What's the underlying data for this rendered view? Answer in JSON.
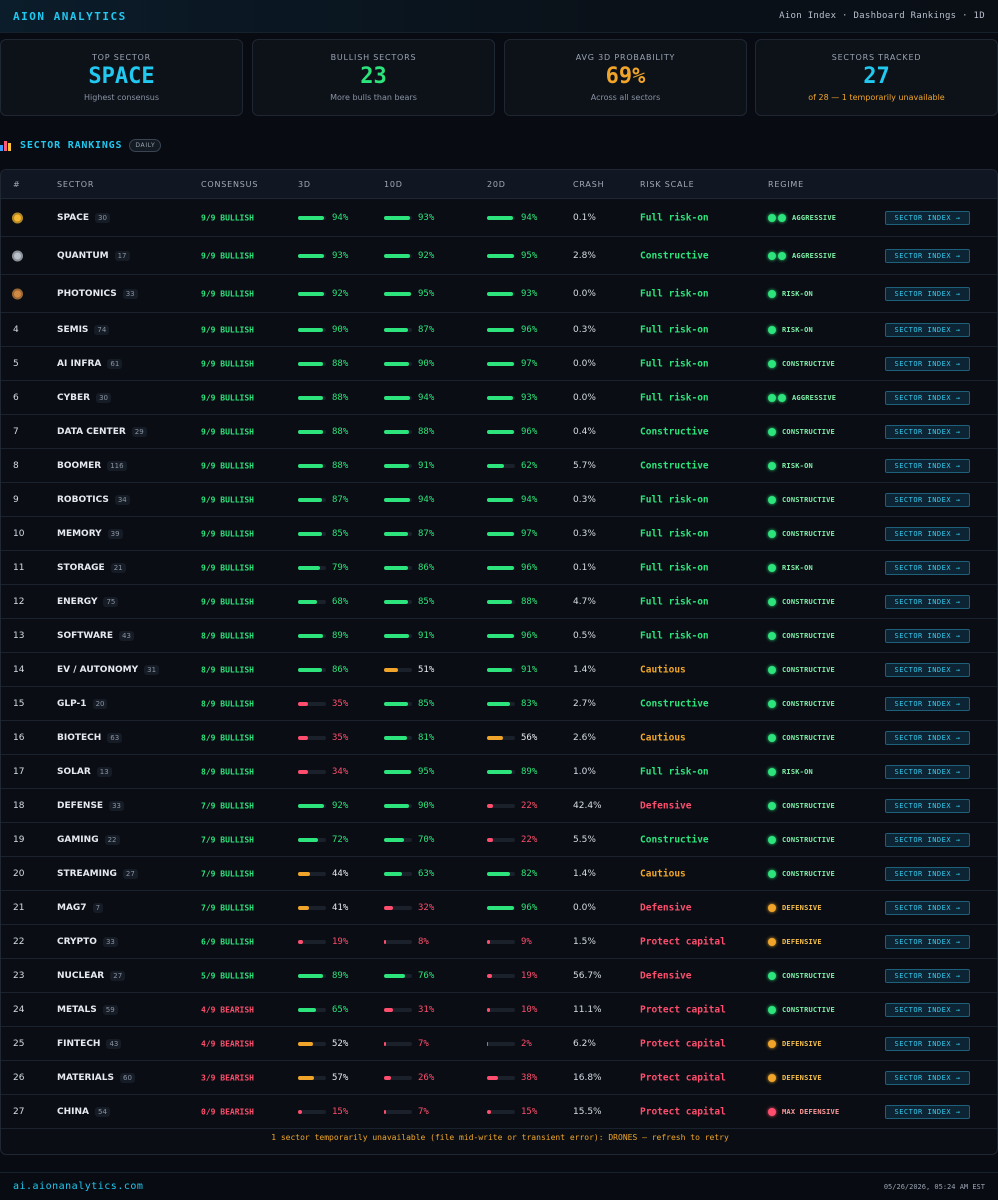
{
  "app": {
    "brand": "AION ANALYTICS",
    "breadcrumb": "Aion Index · Dashboard Rankings · 1D"
  },
  "colors": {
    "green": "#2de37b",
    "amber": "#f0a52a",
    "red": "#ff4d6d",
    "cyan": "#21c8f0"
  },
  "cards": [
    {
      "label": "TOP SECTOR",
      "value": "SPACE",
      "sub": "Highest consensus",
      "value_color": "cyan",
      "sub_color": "muted"
    },
    {
      "label": "BULLISH SECTORS",
      "value": "23",
      "sub": "More bulls than bears",
      "value_color": "green",
      "sub_color": "muted"
    },
    {
      "label": "AVG 3D PROBABILITY",
      "value": "69%",
      "sub": "Across all sectors",
      "value_color": "amber",
      "sub_color": "muted"
    },
    {
      "label": "SECTORS TRACKED",
      "value": "27",
      "sub": "of 28 — 1 temporarily unavailable",
      "value_color": "cyan",
      "sub_color": "amber"
    }
  ],
  "section": {
    "title": "SECTOR RANKINGS",
    "badge": "DAILY",
    "icon": "bar-chart-icon"
  },
  "columns": [
    "#",
    "SECTOR",
    "CONSENSUS",
    "3D",
    "10D",
    "20D",
    "CRASH",
    "RISK SCALE",
    "REGIME"
  ],
  "action_label": "SECTOR INDEX →",
  "rows": [
    {
      "rank": "1",
      "medal": "gold",
      "sector": "SPACE",
      "count": "30",
      "consensus": "9/9 BULLISH",
      "d3": 94,
      "d10": 93,
      "d20": 94,
      "crash": "0.1%",
      "risk": "Full risk-on",
      "regime": "AGGRESSIVE",
      "regime_dots": 2,
      "regime_color": "green"
    },
    {
      "rank": "2",
      "medal": "silver",
      "sector": "QUANTUM",
      "count": "17",
      "consensus": "9/9 BULLISH",
      "d3": 93,
      "d10": 92,
      "d20": 95,
      "crash": "2.8%",
      "risk": "Constructive",
      "regime": "AGGRESSIVE",
      "regime_dots": 2,
      "regime_color": "green"
    },
    {
      "rank": "3",
      "medal": "bronze",
      "sector": "PHOTONICS",
      "count": "33",
      "consensus": "9/9 BULLISH",
      "d3": 92,
      "d10": 95,
      "d20": 93,
      "crash": "0.0%",
      "risk": "Full risk-on",
      "regime": "RISK-ON",
      "regime_dots": 1,
      "regime_color": "green"
    },
    {
      "rank": "4",
      "sector": "SEMIS",
      "count": "74",
      "consensus": "9/9 BULLISH",
      "d3": 90,
      "d10": 87,
      "d20": 96,
      "crash": "0.3%",
      "risk": "Full risk-on",
      "regime": "RISK-ON",
      "regime_dots": 1,
      "regime_color": "green"
    },
    {
      "rank": "5",
      "sector": "AI INFRA",
      "count": "61",
      "consensus": "9/9 BULLISH",
      "d3": 88,
      "d10": 90,
      "d20": 97,
      "crash": "0.0%",
      "risk": "Full risk-on",
      "regime": "CONSTRUCTIVE",
      "regime_dots": 1,
      "regime_color": "green"
    },
    {
      "rank": "6",
      "sector": "CYBER",
      "count": "30",
      "consensus": "9/9 BULLISH",
      "d3": 88,
      "d10": 94,
      "d20": 93,
      "crash": "0.0%",
      "risk": "Full risk-on",
      "regime": "AGGRESSIVE",
      "regime_dots": 2,
      "regime_color": "green"
    },
    {
      "rank": "7",
      "sector": "DATA CENTER",
      "count": "29",
      "consensus": "9/9 BULLISH",
      "d3": 88,
      "d10": 88,
      "d20": 96,
      "crash": "0.4%",
      "risk": "Constructive",
      "regime": "CONSTRUCTIVE",
      "regime_dots": 1,
      "regime_color": "green"
    },
    {
      "rank": "8",
      "sector": "BOOMER",
      "count": "116",
      "consensus": "9/9 BULLISH",
      "d3": 88,
      "d10": 91,
      "d20": 62,
      "crash": "5.7%",
      "risk": "Constructive",
      "regime": "RISK-ON",
      "regime_dots": 1,
      "regime_color": "green"
    },
    {
      "rank": "9",
      "sector": "ROBOTICS",
      "count": "34",
      "consensus": "9/9 BULLISH",
      "d3": 87,
      "d10": 94,
      "d20": 94,
      "crash": "0.3%",
      "risk": "Full risk-on",
      "regime": "CONSTRUCTIVE",
      "regime_dots": 1,
      "regime_color": "green"
    },
    {
      "rank": "10",
      "sector": "MEMORY",
      "count": "39",
      "consensus": "9/9 BULLISH",
      "d3": 85,
      "d10": 87,
      "d20": 97,
      "crash": "0.3%",
      "risk": "Full risk-on",
      "regime": "CONSTRUCTIVE",
      "regime_dots": 1,
      "regime_color": "green"
    },
    {
      "rank": "11",
      "sector": "STORAGE",
      "count": "21",
      "consensus": "9/9 BULLISH",
      "d3": 79,
      "d10": 86,
      "d20": 96,
      "crash": "0.1%",
      "risk": "Full risk-on",
      "regime": "RISK-ON",
      "regime_dots": 1,
      "regime_color": "green"
    },
    {
      "rank": "12",
      "sector": "ENERGY",
      "count": "75",
      "consensus": "9/9 BULLISH",
      "d3": 68,
      "d10": 85,
      "d20": 88,
      "crash": "4.7%",
      "risk": "Full risk-on",
      "regime": "CONSTRUCTIVE",
      "regime_dots": 1,
      "regime_color": "green"
    },
    {
      "rank": "13",
      "sector": "SOFTWARE",
      "count": "43",
      "consensus": "8/9 BULLISH",
      "d3": 89,
      "d10": 91,
      "d20": 96,
      "crash": "0.5%",
      "risk": "Full risk-on",
      "regime": "CONSTRUCTIVE",
      "regime_dots": 1,
      "regime_color": "green"
    },
    {
      "rank": "14",
      "sector": "EV / AUTONOMY",
      "count": "31",
      "consensus": "8/9 BULLISH",
      "d3": 86,
      "d10": 51,
      "d20": 91,
      "crash": "1.4%",
      "risk": "Cautious",
      "regime": "CONSTRUCTIVE",
      "regime_dots": 1,
      "regime_color": "green"
    },
    {
      "rank": "15",
      "sector": "GLP-1",
      "count": "20",
      "consensus": "8/9 BULLISH",
      "d3": 35,
      "d10": 85,
      "d20": 83,
      "crash": "2.7%",
      "risk": "Constructive",
      "regime": "CONSTRUCTIVE",
      "regime_dots": 1,
      "regime_color": "green"
    },
    {
      "rank": "16",
      "sector": "BIOTECH",
      "count": "63",
      "consensus": "8/9 BULLISH",
      "d3": 35,
      "d10": 81,
      "d20": 56,
      "crash": "2.6%",
      "risk": "Cautious",
      "regime": "CONSTRUCTIVE",
      "regime_dots": 1,
      "regime_color": "green"
    },
    {
      "rank": "17",
      "sector": "SOLAR",
      "count": "13",
      "consensus": "8/9 BULLISH",
      "d3": 34,
      "d10": 95,
      "d20": 89,
      "crash": "1.0%",
      "risk": "Full risk-on",
      "regime": "RISK-ON",
      "regime_dots": 1,
      "regime_color": "green"
    },
    {
      "rank": "18",
      "sector": "DEFENSE",
      "count": "33",
      "consensus": "7/9 BULLISH",
      "d3": 92,
      "d10": 90,
      "d20": 22,
      "crash": "42.4%",
      "risk": "Defensive",
      "regime": "CONSTRUCTIVE",
      "regime_dots": 1,
      "regime_color": "green"
    },
    {
      "rank": "19",
      "sector": "GAMING",
      "count": "22",
      "consensus": "7/9 BULLISH",
      "d3": 72,
      "d10": 70,
      "d20": 22,
      "crash": "5.5%",
      "risk": "Constructive",
      "regime": "CONSTRUCTIVE",
      "regime_dots": 1,
      "regime_color": "green"
    },
    {
      "rank": "20",
      "sector": "STREAMING",
      "count": "27",
      "consensus": "7/9 BULLISH",
      "d3": 44,
      "d10": 63,
      "d20": 82,
      "crash": "1.4%",
      "risk": "Cautious",
      "regime": "CONSTRUCTIVE",
      "regime_dots": 1,
      "regime_color": "green"
    },
    {
      "rank": "21",
      "sector": "MAG7",
      "count": "7",
      "consensus": "7/9 BULLISH",
      "d3": 41,
      "d10": 32,
      "d20": 96,
      "crash": "0.0%",
      "risk": "Defensive",
      "regime": "DEFENSIVE",
      "regime_dots": 1,
      "regime_color": "amber"
    },
    {
      "rank": "22",
      "sector": "CRYPTO",
      "count": "33",
      "consensus": "6/9 BULLISH",
      "d3": 19,
      "d10": 8,
      "d20": 9,
      "crash": "1.5%",
      "risk": "Protect capital",
      "regime": "DEFENSIVE",
      "regime_dots": 1,
      "regime_color": "amber"
    },
    {
      "rank": "23",
      "sector": "NUCLEAR",
      "count": "27",
      "consensus": "5/9 BULLISH",
      "d3": 89,
      "d10": 76,
      "d20": 19,
      "crash": "56.7%",
      "risk": "Defensive",
      "regime": "CONSTRUCTIVE",
      "regime_dots": 1,
      "regime_color": "green"
    },
    {
      "rank": "24",
      "sector": "METALS",
      "count": "59",
      "consensus": "4/9 BEARISH",
      "d3": 65,
      "d10": 31,
      "d20": 10,
      "crash": "11.1%",
      "risk": "Protect capital",
      "regime": "CONSTRUCTIVE",
      "regime_dots": 1,
      "regime_color": "green"
    },
    {
      "rank": "25",
      "sector": "FINTECH",
      "count": "43",
      "consensus": "4/9 BEARISH",
      "d3": 52,
      "d10": 7,
      "d20": 2,
      "crash": "6.2%",
      "risk": "Protect capital",
      "regime": "DEFENSIVE",
      "regime_dots": 1,
      "regime_color": "amber"
    },
    {
      "rank": "26",
      "sector": "MATERIALS",
      "count": "60",
      "consensus": "3/9 BEARISH",
      "d3": 57,
      "d10": 26,
      "d20": 38,
      "crash": "16.8%",
      "risk": "Protect capital",
      "regime": "DEFENSIVE",
      "regime_dots": 1,
      "regime_color": "amber"
    },
    {
      "rank": "27",
      "sector": "CHINA",
      "count": "54",
      "consensus": "0/9 BEARISH",
      "d3": 15,
      "d10": 7,
      "d20": 15,
      "crash": "15.5%",
      "risk": "Protect capital",
      "regime": "MAX DEFENSIVE",
      "regime_dots": 1,
      "regime_color": "red"
    }
  ],
  "notice": "1 sector temporarily unavailable (file mid-write or transient error): DRONES — refresh to retry",
  "footer": {
    "link": "ai.aionanalytics.com",
    "timestamp": "05/26/2026, 05:24 AM EST"
  }
}
